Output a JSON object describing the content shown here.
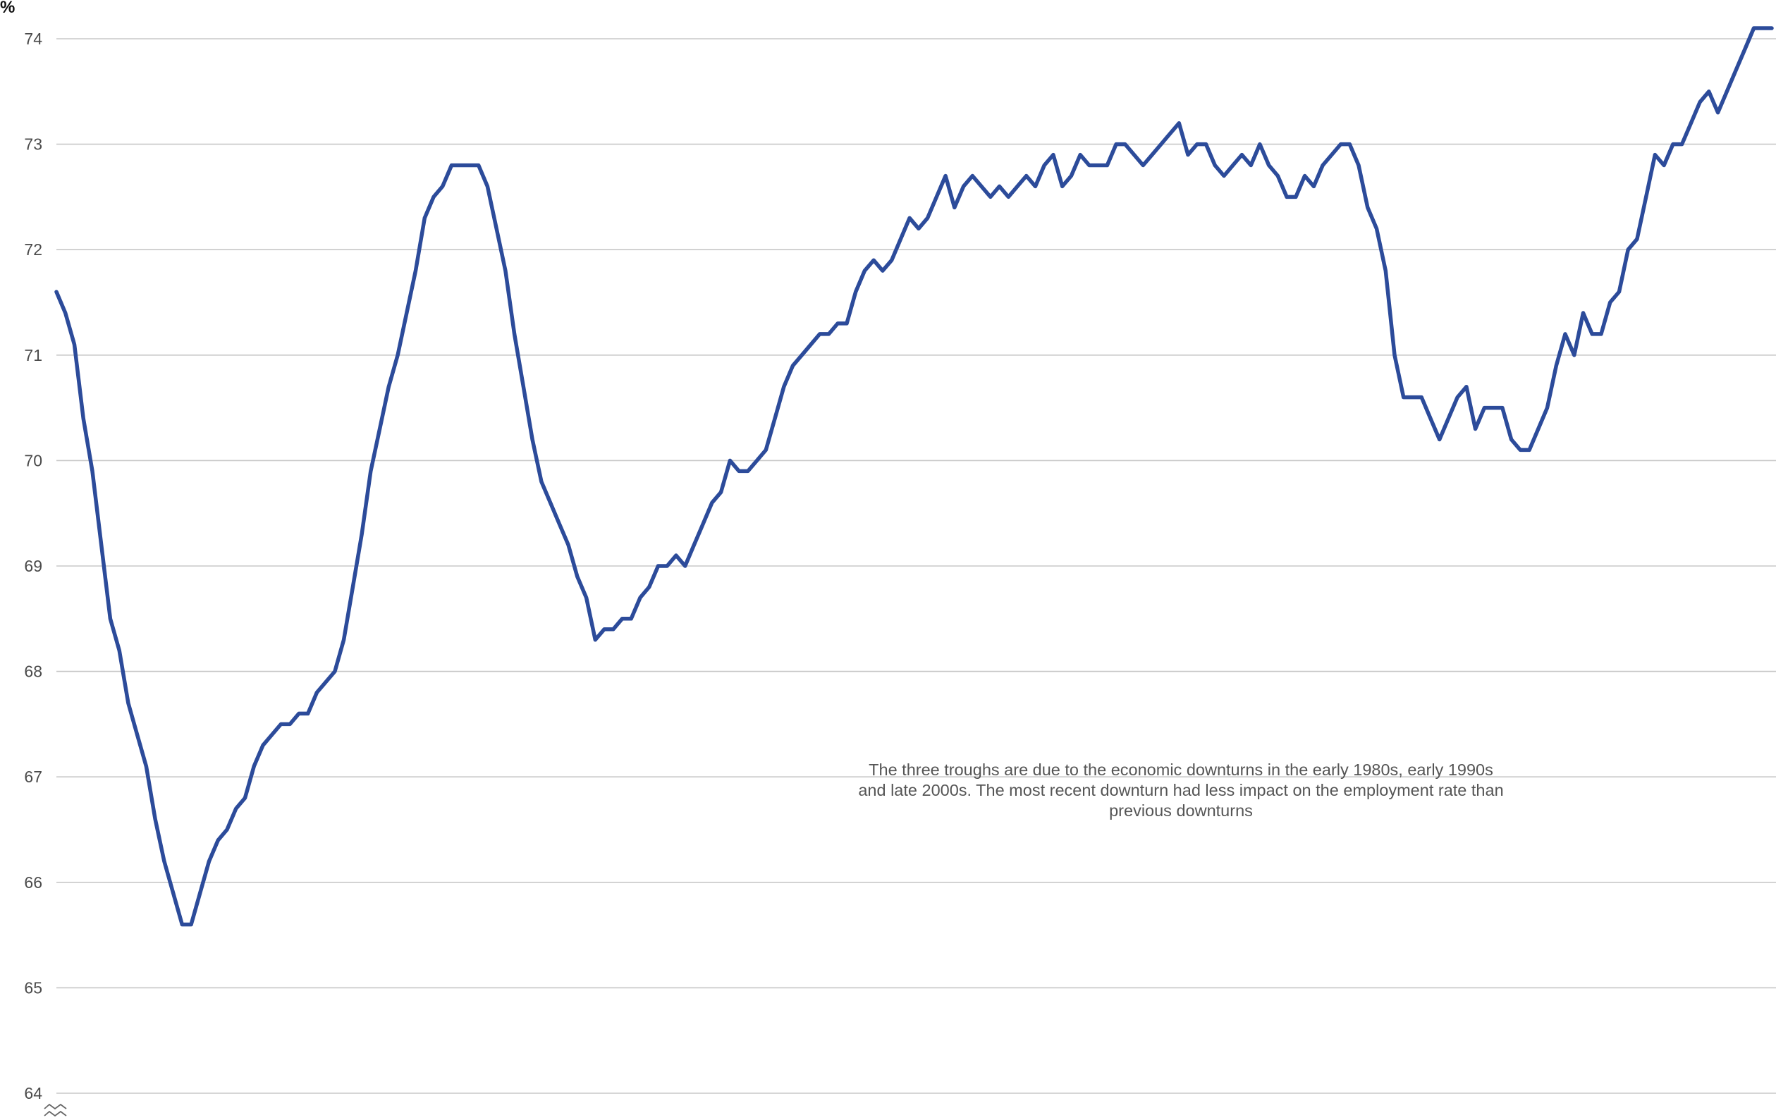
{
  "chart_data": {
    "type": "line",
    "title": "",
    "xlabel": "",
    "ylabel": "%",
    "ylim": [
      64,
      74
    ],
    "y_ticks": [
      "64",
      "65",
      "66",
      "67",
      "68",
      "69",
      "70",
      "71",
      "72",
      "73",
      "74"
    ],
    "grid": true,
    "axis_break": true,
    "line_color": "#2c4b9a",
    "annotation": "The three troughs are due to the economic downturns in the early 1980s, early 1990s and late 2000s. The most recent downturn had less impact on the employment rate than previous downturns",
    "series": [
      {
        "values": [
          71.6,
          71.4,
          71.1,
          70.4,
          69.9,
          69.2,
          68.5,
          68.2,
          67.7,
          67.4,
          67.1,
          66.6,
          66.2,
          65.9,
          65.6,
          65.6,
          65.9,
          66.2,
          66.4,
          66.5,
          66.7,
          66.8,
          67.1,
          67.3,
          67.4,
          67.5,
          67.5,
          67.6,
          67.6,
          67.8,
          67.9,
          68.0,
          68.3,
          68.8,
          69.3,
          69.9,
          70.3,
          70.7,
          71.0,
          71.4,
          71.8,
          72.3,
          72.5,
          72.6,
          72.8,
          72.8,
          72.8,
          72.8,
          72.6,
          72.2,
          71.8,
          71.2,
          70.7,
          70.2,
          69.8,
          69.6,
          69.4,
          69.2,
          68.9,
          68.7,
          68.3,
          68.4,
          68.4,
          68.5,
          68.5,
          68.7,
          68.8,
          69.0,
          69.0,
          69.1,
          69.0,
          69.2,
          69.4,
          69.6,
          69.7,
          70.0,
          69.9,
          69.9,
          70.0,
          70.1,
          70.4,
          70.7,
          70.9,
          71.0,
          71.1,
          71.2,
          71.2,
          71.3,
          71.3,
          71.6,
          71.8,
          71.9,
          71.8,
          71.9,
          72.1,
          72.3,
          72.2,
          72.3,
          72.5,
          72.7,
          72.4,
          72.6,
          72.7,
          72.6,
          72.5,
          72.6,
          72.5,
          72.6,
          72.7,
          72.6,
          72.8,
          72.9,
          72.6,
          72.7,
          72.9,
          72.8,
          72.8,
          72.8,
          73.0,
          73.0,
          72.9,
          72.8,
          72.9,
          73.0,
          73.1,
          73.2,
          72.9,
          73.0,
          73.0,
          72.8,
          72.7,
          72.8,
          72.9,
          72.8,
          73.0,
          72.8,
          72.7,
          72.5,
          72.5,
          72.7,
          72.6,
          72.8,
          72.9,
          73.0,
          73.0,
          72.8,
          72.4,
          72.2,
          71.8,
          71.0,
          70.6,
          70.6,
          70.6,
          70.4,
          70.2,
          70.4,
          70.6,
          70.7,
          70.3,
          70.5,
          70.5,
          70.5,
          70.2,
          70.1,
          70.1,
          70.3,
          70.5,
          70.9,
          71.2,
          71.0,
          71.4,
          71.2,
          71.2,
          71.5,
          71.6,
          72.0,
          72.1,
          72.5,
          72.9,
          72.8,
          73.0,
          73.0,
          73.2,
          73.4,
          73.5,
          73.3,
          73.5,
          73.7,
          73.9,
          74.1,
          74.1,
          74.1
        ]
      }
    ]
  }
}
